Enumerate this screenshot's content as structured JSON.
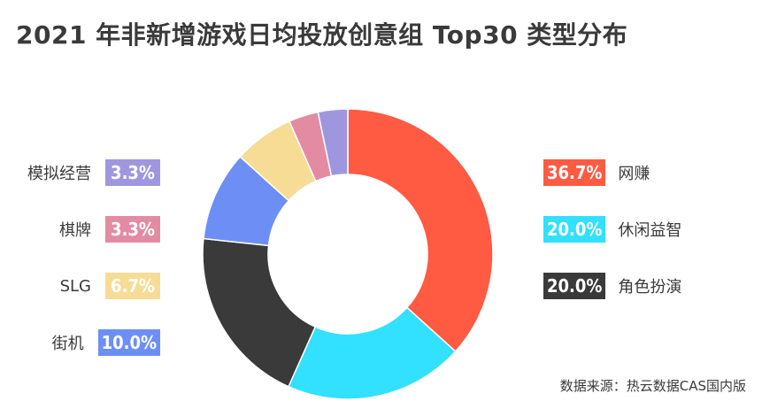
{
  "title": "2021 年非新增游戏日均投放创意组 Top30 类型分布",
  "source": "数据来源：热云数据CAS国内版",
  "chart_data": {
    "type": "donut",
    "title": "2021 年非新增游戏日均投放创意组 Top30 类型分布",
    "slices": [
      {
        "name": "网赚",
        "value": 36.7,
        "label": "36.7%",
        "color": "#ff5a42"
      },
      {
        "name": "休闲益智",
        "value": 20.0,
        "label": "20.0%",
        "color": "#32e0ff"
      },
      {
        "name": "角色扮演",
        "value": 20.0,
        "label": "20.0%",
        "color": "#3a3a3a"
      },
      {
        "name": "街机",
        "value": 10.0,
        "label": "10.0%",
        "color": "#6d8ff5"
      },
      {
        "name": "SLG",
        "value": 6.7,
        "label": "6.7%",
        "color": "#f7dc95"
      },
      {
        "name": "棋牌",
        "value": 3.3,
        "label": "3.3%",
        "color": "#e38ba3"
      },
      {
        "name": "模拟经营",
        "value": 3.3,
        "label": "3.3%",
        "color": "#9e97e0"
      }
    ],
    "legend_right": [
      "网赚",
      "休闲益智",
      "角色扮演"
    ],
    "legend_left": [
      "模拟经营",
      "棋牌",
      "SLG",
      "街机"
    ]
  }
}
